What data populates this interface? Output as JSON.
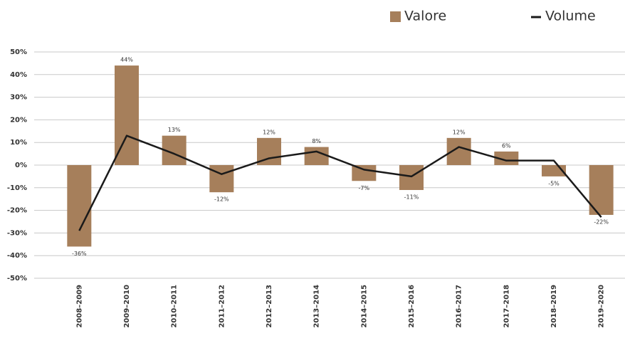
{
  "chart_data": {
    "type": "bar",
    "categories": [
      "2008–2009",
      "2009–2010",
      "2010–2011",
      "2011–2012",
      "2012–2013",
      "2013–2014",
      "2014–2015",
      "2015–2016",
      "2016–2017",
      "2017–2018",
      "2018–2019",
      "2019–2020"
    ],
    "series": [
      {
        "name": "Valore",
        "type": "bar",
        "color": "#a67f5b",
        "values": [
          -36,
          44,
          13,
          -12,
          12,
          8,
          -7,
          -11,
          12,
          6,
          -5,
          -22
        ],
        "value_labels": [
          "-36%",
          "44%",
          "13%",
          "-12%",
          "12%",
          "8%",
          "-7%",
          "-11%",
          "12%",
          "6%",
          "-5%",
          "-22%"
        ]
      },
      {
        "name": "Volume",
        "type": "line",
        "color": "#1a1a1a",
        "values": [
          -29,
          13,
          5,
          -4,
          3,
          6,
          -2,
          -5,
          8,
          2,
          2,
          -23
        ]
      }
    ],
    "ylim": [
      -50,
      50
    ],
    "yticks": [
      {
        "value": -50,
        "label": "-50%"
      },
      {
        "value": -40,
        "label": "-40%"
      },
      {
        "value": -30,
        "label": "-30%"
      },
      {
        "value": -20,
        "label": "-20%"
      },
      {
        "value": -10,
        "label": "-10%"
      },
      {
        "value": 0,
        "label": "0%"
      },
      {
        "value": 10,
        "label": "10%"
      },
      {
        "value": 20,
        "label": "20%"
      },
      {
        "value": 30,
        "label": "30%"
      },
      {
        "value": 40,
        "label": "40%"
      },
      {
        "value": 50,
        "label": "50%"
      }
    ],
    "grid": true,
    "legend": "top-right"
  }
}
